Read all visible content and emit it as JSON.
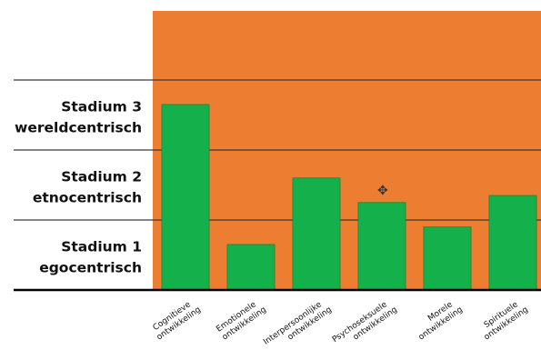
{
  "chart_data": {
    "type": "bar",
    "title": "",
    "xlabel": "",
    "ylabel": "",
    "ylim": [
      0,
      3
    ],
    "grid": true,
    "stage_labels": [
      {
        "line1": "Stadium 1",
        "line2": "egocentrisch"
      },
      {
        "line1": "Stadium 2",
        "line2": "etnocentrisch"
      },
      {
        "line1": "Stadium 3",
        "line2": "wereldcentrisch"
      }
    ],
    "categories": [
      {
        "line1": "Cognitieve",
        "line2": "ontwikkeling"
      },
      {
        "line1": "Emotionele",
        "line2": "ontwikkeling"
      },
      {
        "line1": "Interpersoonlijke",
        "line2": "ontwikkeling"
      },
      {
        "line1": "Psychoseksuele",
        "line2": "ontwikkeling"
      },
      {
        "line1": "Morele",
        "line2": "ontwikkeling"
      },
      {
        "line1": "Spirituele",
        "line2": "ontwikkeling"
      }
    ],
    "values": [
      2.65,
      0.65,
      1.6,
      1.25,
      0.9,
      1.35
    ],
    "colors": {
      "plot_background": "#ED7D31",
      "bar": "#14B04B",
      "bar_edge": "#0E8A3A",
      "gridline": "#3A3A3A",
      "axis": "#000000"
    }
  },
  "cursor_icon": "cursor-move-icon"
}
